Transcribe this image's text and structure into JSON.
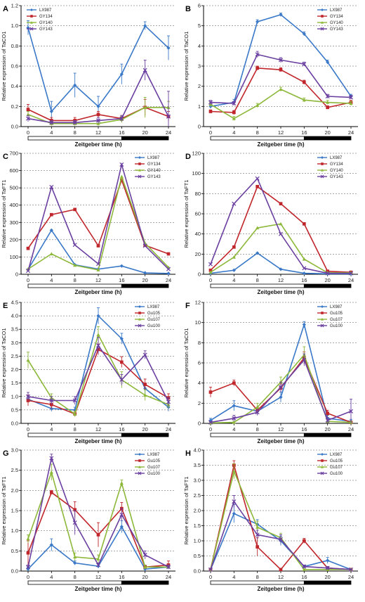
{
  "xlabel_default": "Zeitgeber time (h)",
  "chart_data": [
    {
      "panel": "A",
      "type": "line",
      "ylabel": "Relative expression of TaCO1",
      "xlabel": "Zeitgeber time (h)",
      "x": [
        0,
        4,
        8,
        12,
        16,
        20,
        24
      ],
      "ylim": [
        0,
        1.2
      ],
      "yticks": [
        0,
        0.2,
        0.4,
        0.6,
        0.8,
        1,
        1.2
      ],
      "ytick_labels": [
        "0.0",
        "0.2",
        "0.4",
        "0.6",
        "0.8",
        "1.0",
        "1.2"
      ],
      "legend_position": "top-left",
      "series": [
        {
          "name": "LX987",
          "color": "#3a78c8",
          "marker": "diamond",
          "values": [
            0.98,
            0.15,
            0.41,
            0.2,
            0.52,
            1.0,
            0.78
          ],
          "err": [
            0.07,
            0.1,
            0.12,
            0.1,
            0.1,
            0.04,
            0.12
          ]
        },
        {
          "name": "GY134",
          "color": "#c0262b",
          "marker": "square",
          "values": [
            0.17,
            0.06,
            0.06,
            0.12,
            0.08,
            0.19,
            0.1
          ],
          "err": [
            0.05,
            0.03,
            0.03,
            0.03,
            0.03,
            0.08,
            0.05
          ]
        },
        {
          "name": "GY140",
          "color": "#8db83a",
          "marker": "triangle",
          "values": [
            0.12,
            0.03,
            0.03,
            0.03,
            0.07,
            0.19,
            0.19
          ],
          "err": [
            0.03,
            0.02,
            0.02,
            0.02,
            0.03,
            0.1,
            0.06
          ]
        },
        {
          "name": "GY143",
          "color": "#6a3fa0",
          "marker": "x",
          "values": [
            0.08,
            0.04,
            0.04,
            0.06,
            0.08,
            0.56,
            0.1
          ],
          "err": [
            0.03,
            0.02,
            0.02,
            0.03,
            0.03,
            0.1,
            0.25
          ]
        }
      ]
    },
    {
      "panel": "B",
      "type": "line",
      "ylabel": "Relative expression of TaCO1",
      "xlabel": "Zeitgeber time (h)",
      "x": [
        0,
        4,
        8,
        12,
        16,
        20,
        24
      ],
      "ylim": [
        0,
        6
      ],
      "yticks": [
        0,
        1,
        2,
        3,
        4,
        5,
        6
      ],
      "ytick_labels": [
        "0",
        "1",
        "2",
        "3",
        "4",
        "5",
        "6"
      ],
      "legend_position": "top-right",
      "series": [
        {
          "name": "LX987",
          "color": "#3a78c8",
          "marker": "diamond",
          "values": [
            1.0,
            1.2,
            5.2,
            5.55,
            4.6,
            3.2,
            1.5
          ],
          "err": [
            0.1,
            0.15,
            0.1,
            0.08,
            0.1,
            0.1,
            0.1
          ]
        },
        {
          "name": "GY134",
          "color": "#c0262b",
          "marker": "square",
          "values": [
            0.75,
            0.7,
            2.9,
            2.82,
            2.2,
            0.95,
            1.2
          ],
          "err": [
            0.08,
            0.1,
            0.1,
            0.1,
            0.1,
            0.08,
            0.1
          ]
        },
        {
          "name": "GY140",
          "color": "#8db83a",
          "marker": "triangle",
          "values": [
            1.1,
            0.4,
            1.05,
            1.85,
            1.32,
            1.2,
            1.15
          ],
          "err": [
            0.1,
            0.1,
            0.1,
            0.1,
            0.1,
            0.1,
            0.1
          ]
        },
        {
          "name": "GY143",
          "color": "#6a3fa0",
          "marker": "x",
          "values": [
            1.2,
            1.15,
            3.58,
            3.3,
            3.1,
            1.5,
            1.45
          ],
          "err": [
            0.1,
            0.1,
            0.15,
            0.12,
            0.1,
            0.1,
            0.1
          ]
        }
      ]
    },
    {
      "panel": "C",
      "type": "line",
      "ylabel": "Relative expression of TaFT1",
      "xlabel": "Zeitgeber time (h)",
      "x": [
        0,
        4,
        8,
        12,
        16,
        20,
        24
      ],
      "ylim": [
        0,
        700
      ],
      "yticks": [
        0,
        100,
        200,
        300,
        400,
        500,
        600,
        700
      ],
      "ytick_labels": [
        "0",
        "100",
        "200",
        "300",
        "400",
        "500",
        "600",
        "700"
      ],
      "legend_position": "top-right",
      "series": [
        {
          "name": "LX987",
          "color": "#3a78c8",
          "marker": "diamond",
          "values": [
            28,
            255,
            55,
            30,
            48,
            8,
            5
          ],
          "err": [
            0,
            0,
            0,
            0,
            0,
            0,
            0
          ]
        },
        {
          "name": "GY134",
          "color": "#c0262b",
          "marker": "square",
          "values": [
            150,
            345,
            375,
            165,
            545,
            168,
            118
          ],
          "err": [
            0,
            0,
            0,
            0,
            0,
            0,
            0
          ]
        },
        {
          "name": "GY140",
          "color": "#8db83a",
          "marker": "triangle",
          "values": [
            30,
            118,
            52,
            25,
            565,
            180,
            40
          ],
          "err": [
            0,
            0,
            0,
            0,
            0,
            0,
            0
          ]
        },
        {
          "name": "GY143",
          "color": "#6a3fa0",
          "marker": "x",
          "values": [
            20,
            505,
            170,
            60,
            635,
            165,
            30
          ],
          "err": [
            0,
            0,
            0,
            0,
            0,
            0,
            0
          ]
        }
      ]
    },
    {
      "panel": "D",
      "type": "line",
      "ylabel": "Relative expression of TaFT1",
      "xlabel": "Zeitgeber time (h)",
      "x": [
        0,
        4,
        8,
        12,
        16,
        20,
        24
      ],
      "ylim": [
        0,
        120
      ],
      "yticks": [
        0,
        20,
        40,
        60,
        80,
        100,
        120
      ],
      "ytick_labels": [
        "0",
        "20",
        "40",
        "60",
        "80",
        "100",
        "120"
      ],
      "legend_position": "top-right",
      "series": [
        {
          "name": "LX987",
          "color": "#3a78c8",
          "marker": "diamond",
          "values": [
            1,
            4,
            21,
            5,
            1,
            0.5,
            0.5
          ],
          "err": [
            0,
            0,
            0,
            0,
            0,
            0,
            0
          ]
        },
        {
          "name": "GY134",
          "color": "#c0262b",
          "marker": "square",
          "values": [
            4,
            27,
            87,
            70,
            50,
            3,
            2
          ],
          "err": [
            0,
            0,
            0,
            0,
            0,
            0,
            0
          ]
        },
        {
          "name": "GY140",
          "color": "#8db83a",
          "marker": "triangle",
          "values": [
            2,
            17,
            46,
            50,
            15,
            1.5,
            1.5
          ],
          "err": [
            0,
            0,
            0,
            0,
            0,
            0,
            0
          ]
        },
        {
          "name": "GY143",
          "color": "#6a3fa0",
          "marker": "x",
          "values": [
            10,
            70,
            95,
            40,
            6,
            1,
            1
          ],
          "err": [
            0,
            0,
            0,
            0,
            0,
            0,
            0
          ]
        }
      ]
    },
    {
      "panel": "E",
      "type": "line",
      "ylabel": "Relative expression of TaCO1",
      "xlabel": "Zeitgeber time (h)",
      "x": [
        0,
        4,
        8,
        12,
        16,
        20,
        24
      ],
      "ylim": [
        0,
        4.5
      ],
      "yticks": [
        0,
        0.5,
        1,
        1.5,
        2,
        2.5,
        3,
        3.5,
        4,
        4.5
      ],
      "ytick_labels": [
        "0.0",
        "0.5",
        "1.0",
        "1.5",
        "2.0",
        "2.5",
        "3.0",
        "3.5",
        "4.0",
        "4.5"
      ],
      "legend_position": "top-right",
      "series": [
        {
          "name": "LX987",
          "color": "#3a78c8",
          "marker": "diamond",
          "values": [
            0.9,
            0.55,
            0.5,
            4.0,
            3.15,
            1.3,
            0.6
          ],
          "err": [
            0.15,
            0.1,
            0.1,
            0.3,
            0.2,
            0.2,
            0.15
          ]
        },
        {
          "name": "Gu105",
          "color": "#c0262b",
          "marker": "square",
          "values": [
            0.85,
            0.7,
            0.35,
            2.75,
            2.28,
            1.45,
            0.95
          ],
          "err": [
            0.2,
            0.15,
            0.1,
            0.2,
            0.2,
            0.2,
            0.15
          ]
        },
        {
          "name": "Gu107",
          "color": "#8db83a",
          "marker": "triangle",
          "values": [
            2.35,
            0.95,
            0.35,
            3.3,
            1.62,
            1.05,
            0.7
          ],
          "err": [
            0.3,
            0.15,
            0.1,
            0.3,
            0.3,
            0.2,
            0.15
          ]
        },
        {
          "name": "Gu100",
          "color": "#6a3fa0",
          "marker": "x",
          "values": [
            1.0,
            0.85,
            0.85,
            2.9,
            1.62,
            2.55,
            0.8
          ],
          "err": [
            0.15,
            0.15,
            0.15,
            0.3,
            0.2,
            0.15,
            0.15
          ]
        }
      ]
    },
    {
      "panel": "F",
      "type": "line",
      "ylabel": "Relative expression of TaCO1",
      "xlabel": "Zeitgeber time (h)",
      "x": [
        0,
        4,
        8,
        12,
        16,
        20,
        24
      ],
      "ylim": [
        0,
        12
      ],
      "yticks": [
        0,
        2,
        4,
        6,
        8,
        10,
        12
      ],
      "ytick_labels": [
        "0",
        "2",
        "4",
        "6",
        "8",
        "10",
        "12"
      ],
      "legend_position": "top-right",
      "series": [
        {
          "name": "LX987",
          "color": "#3a78c8",
          "marker": "diamond",
          "values": [
            0.3,
            1.75,
            1.2,
            2.6,
            9.8,
            0.5,
            0.2
          ],
          "err": [
            0.2,
            0.5,
            0.4,
            0.5,
            0.3,
            0.3,
            0.2
          ]
        },
        {
          "name": "Gu105",
          "color": "#c0262b",
          "marker": "square",
          "values": [
            3.1,
            4.0,
            1.3,
            3.5,
            6.5,
            1.0,
            0.1
          ],
          "err": [
            0.5,
            0.3,
            0.3,
            0.4,
            0.6,
            0.3,
            0.1
          ]
        },
        {
          "name": "Gu107",
          "color": "#8db83a",
          "marker": "triangle",
          "values": [
            0.05,
            0.1,
            1.6,
            4.1,
            6.8,
            0.2,
            0.1
          ],
          "err": [
            0.05,
            0.1,
            0.4,
            0.5,
            0.8,
            0.2,
            0.1
          ]
        },
        {
          "name": "Gu100",
          "color": "#6a3fa0",
          "marker": "x",
          "values": [
            0.1,
            0.5,
            1.1,
            3.6,
            6.3,
            0.3,
            1.2
          ],
          "err": [
            0.05,
            0.3,
            0.3,
            0.5,
            0.6,
            0.3,
            1.2
          ]
        }
      ]
    },
    {
      "panel": "G",
      "type": "line",
      "ylabel": "Relative expression of TaFT1",
      "xlabel": "Zeitgeber time (h)",
      "x": [
        0,
        4,
        8,
        12,
        16,
        20,
        24
      ],
      "ylim": [
        0,
        3
      ],
      "yticks": [
        0,
        0.5,
        1,
        1.5,
        2,
        2.5,
        3
      ],
      "ytick_labels": [
        "0.0",
        "0.5",
        "1.0",
        "1.5",
        "2.0",
        "2.5",
        "3.0"
      ],
      "legend_position": "top-right",
      "series": [
        {
          "name": "LX987",
          "color": "#3a78c8",
          "marker": "diamond",
          "values": [
            0.05,
            0.65,
            0.2,
            0.12,
            1.1,
            0.05,
            0.1
          ],
          "err": [
            0.05,
            0.15,
            0.05,
            0.05,
            0.15,
            0.05,
            0.05
          ]
        },
        {
          "name": "Gu105",
          "color": "#c0262b",
          "marker": "square",
          "values": [
            0.45,
            1.95,
            1.52,
            0.9,
            1.55,
            0.1,
            0.15
          ],
          "err": [
            0.3,
            0.05,
            0.2,
            0.3,
            0.15,
            0.05,
            0.1
          ]
        },
        {
          "name": "Gu107",
          "color": "#8db83a",
          "marker": "triangle",
          "values": [
            0.8,
            2.45,
            0.35,
            0.3,
            2.18,
            0.1,
            0.1
          ],
          "err": [
            0.1,
            0.2,
            0.1,
            0.1,
            0.08,
            0.05,
            0.05
          ]
        },
        {
          "name": "Gu100",
          "color": "#6a3fa0",
          "marker": "x",
          "values": [
            0.1,
            2.8,
            1.2,
            0.15,
            1.4,
            0.4,
            0.1
          ],
          "err": [
            0.05,
            0.1,
            0.3,
            0.05,
            0.15,
            0.1,
            0.05
          ]
        }
      ]
    },
    {
      "panel": "H",
      "type": "line",
      "ylabel": "Relative expression of TaFT1",
      "xlabel": "Zeitgeber time (h)",
      "x": [
        0,
        4,
        8,
        12,
        16,
        20,
        24
      ],
      "ylim": [
        0,
        4
      ],
      "yticks": [
        0,
        0.5,
        1,
        1.5,
        2,
        2.5,
        3,
        3.5,
        4
      ],
      "ytick_labels": [
        "0.0",
        "0.5",
        "1.0",
        "1.5",
        "2.0",
        "2.5",
        "3.0",
        "3.5",
        "4.0"
      ],
      "legend_position": "top-right",
      "series": [
        {
          "name": "LX987",
          "color": "#3a78c8",
          "marker": "diamond",
          "values": [
            0.05,
            1.9,
            1.55,
            1.0,
            0.15,
            0.35,
            0.05
          ],
          "err": [
            0.02,
            0.3,
            0.15,
            0.15,
            0.05,
            0.1,
            0.02
          ]
        },
        {
          "name": "Gu105",
          "color": "#c0262b",
          "marker": "square",
          "values": [
            0.05,
            3.5,
            0.8,
            0.05,
            1.0,
            0.1,
            0.05
          ],
          "err": [
            0.02,
            0.15,
            0.3,
            0.02,
            0.08,
            0.05,
            0.02
          ]
        },
        {
          "name": "Gu107",
          "color": "#8db83a",
          "marker": "triangle",
          "values": [
            0.05,
            3.3,
            1.45,
            1.1,
            0.05,
            0.05,
            0.05
          ],
          "err": [
            0.02,
            0.25,
            0.2,
            0.15,
            0.02,
            0.02,
            0.02
          ]
        },
        {
          "name": "Gu100",
          "color": "#6a3fa0",
          "marker": "x",
          "values": [
            0.05,
            2.3,
            1.2,
            1.05,
            0.15,
            0.1,
            0.05
          ],
          "err": [
            0.02,
            0.2,
            0.15,
            0.15,
            0.05,
            0.05,
            0.02
          ]
        }
      ]
    }
  ],
  "panel_xlabels": [
    "Zeitgeber time (h)",
    "Zeitgeber time (h)",
    "Zeitgeber time (h)",
    "Zeitgeber time (h)",
    "Zeitgeber time (h)",
    "Zeitgeber time (h)",
    "Zeitgeber time (h)",
    "Zeitgeber time (h)"
  ],
  "light_bar": {
    "light_until": 16,
    "light_color": "#ffffff",
    "dark_color": "#000000"
  }
}
